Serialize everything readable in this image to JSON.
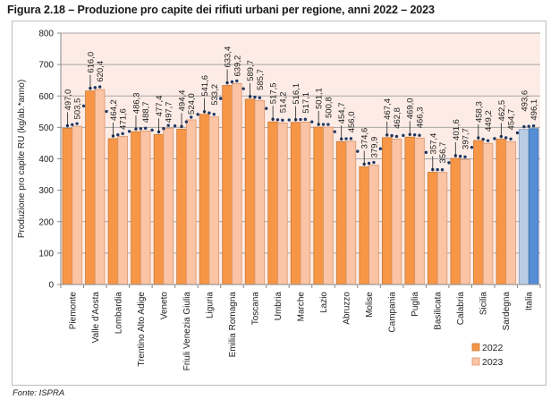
{
  "figure": {
    "title": "Figura 2.18 – Produzione pro capite dei rifiuti urbani per regione, anni 2022 – 2023",
    "source": "Fonte: ISPRA"
  },
  "colors": {
    "bar_2022": "#F79646",
    "bar_2022_border": "#C97A3A",
    "bar_2023": "#FAC4A5",
    "bar_2023_border": "#D9956B",
    "italia_2022": "#B8CCE4",
    "italia_2023": "#558ED5",
    "plot_background": "#FDECE6",
    "gridline": "#A6A6A6",
    "trend_dots": "#1F3864"
  },
  "chart_data": {
    "type": "bar",
    "title": "Figura 2.18 – Produzione pro capite dei rifiuti urbani per regione, anni 2022 – 2023",
    "xlabel": "",
    "ylabel": "Produzione pro capite RU (kg/ab.*anno)",
    "ylim": [
      0,
      800
    ],
    "yticks": [
      0,
      100,
      200,
      300,
      400,
      500,
      600,
      700,
      800
    ],
    "grid": true,
    "legend_position": "bottom-right",
    "categories": [
      "Piemonte",
      "Valle d'Aosta",
      "Lombardia",
      "Trentino Alto Adige",
      "Veneto",
      "Friuli Venezia Giulia",
      "Liguria",
      "Emilia Romagna",
      "Toscana",
      "Umbria",
      "Marche",
      "Lazio",
      "Abruzzo",
      "Molise",
      "Campania",
      "Puglia",
      "Basilicata",
      "Calabria",
      "Sicilia",
      "Sardegna",
      "Italia"
    ],
    "series": [
      {
        "name": "2022",
        "values": [
          497.0,
          616.0,
          464.2,
          486.3,
          477.4,
          494.4,
          541.6,
          633.4,
          589.7,
          517.5,
          516.1,
          501.1,
          454.7,
          374.6,
          467.4,
          469.0,
          357.4,
          401.6,
          458.3,
          462.5,
          493.6
        ]
      },
      {
        "name": "2023",
        "values": [
          503.5,
          620.4,
          471.6,
          488.7,
          497.7,
          524.0,
          533.2,
          639.2,
          585.7,
          514.2,
          517.1,
          500.8,
          456.0,
          379.9,
          462.8,
          466.3,
          356.7,
          397.7,
          449.2,
          454.7,
          496.1
        ]
      }
    ],
    "data_labels": {
      "2022": [
        "497,0",
        "616,0",
        "464,2",
        "486,3",
        "477,4",
        "494,4",
        "541,6",
        "633,4",
        "589,7",
        "517,5",
        "516,1",
        "501,1",
        "454,7",
        "374,6",
        "467,4",
        "469,0",
        "357,4",
        "401,6",
        "458,3",
        "462,5",
        "493,6"
      ],
      "2023": [
        "503,5",
        "620,4",
        "471,6",
        "488,7",
        "497,7",
        "524,0",
        "533,2",
        "639,2",
        "585,7",
        "514,2",
        "517,1",
        "500,8",
        "456,0",
        "379,9",
        "462,8",
        "466,3",
        "356,7",
        "397,7",
        "449,2",
        "454,7",
        "496,1"
      ]
    },
    "legend": [
      "2022",
      "2023"
    ]
  }
}
